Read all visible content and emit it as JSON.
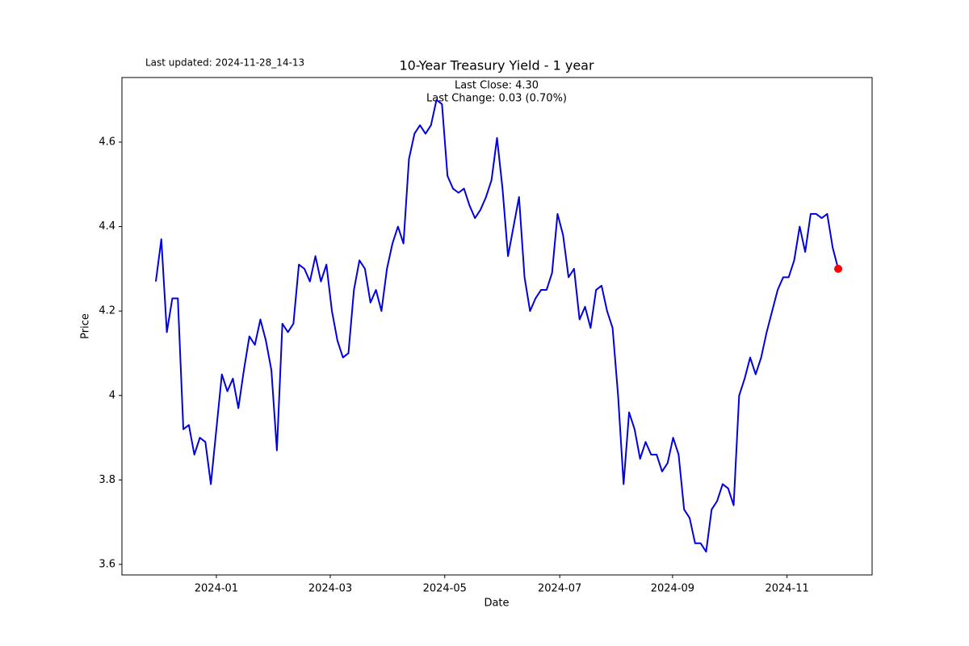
{
  "chart_data": {
    "type": "line",
    "title": "10-Year Treasury Yield - 1 year",
    "annotations": [
      "Last updated: 2024-11-28_14-13",
      "Last Close: 4.30",
      "Last Change: 0.03 (0.70%)"
    ],
    "x_label": "Date",
    "y_label": "Price",
    "series": [
      {
        "color": "#0000e0",
        "marker_color": "red",
        "values": [
          4.27,
          4.37,
          4.15,
          4.23,
          4.23,
          3.92,
          3.93,
          3.86,
          3.9,
          3.89,
          3.79,
          3.92,
          4.05,
          4.01,
          4.04,
          3.97,
          4.06,
          4.14,
          4.12,
          4.18,
          4.13,
          4.06,
          3.87,
          4.17,
          4.15,
          4.17,
          4.31,
          4.3,
          4.27,
          4.33,
          4.27,
          4.31,
          4.2,
          4.13,
          4.09,
          4.1,
          4.25,
          4.32,
          4.3,
          4.22,
          4.25,
          4.2,
          4.3,
          4.36,
          4.4,
          4.36,
          4.56,
          4.62,
          4.64,
          4.62,
          4.64,
          4.7,
          4.69,
          4.52,
          4.49,
          4.48,
          4.49,
          4.45,
          4.42,
          4.44,
          4.47,
          4.51,
          4.61,
          4.49,
          4.33,
          4.4,
          4.47,
          4.28,
          4.2,
          4.23,
          4.25,
          4.25,
          4.29,
          4.43,
          4.38,
          4.28,
          4.3,
          4.18,
          4.21,
          4.16,
          4.25,
          4.26,
          4.2,
          4.16,
          4.0,
          3.79,
          3.96,
          3.92,
          3.85,
          3.89,
          3.86,
          3.86,
          3.82,
          3.84,
          3.9,
          3.86,
          3.73,
          3.71,
          3.65,
          3.65,
          3.63,
          3.73,
          3.75,
          3.79,
          3.78,
          3.74,
          4.0,
          4.04,
          4.09,
          4.05,
          4.09,
          4.15,
          4.2,
          4.25,
          4.28,
          4.28,
          4.32,
          4.4,
          4.34,
          4.43,
          4.43,
          4.42,
          4.43,
          4.35,
          4.3
        ]
      }
    ],
    "xlim": [
      -6.16,
      130.16
    ],
    "xticks": [
      {
        "value": 11.0,
        "label": "2024-01"
      },
      {
        "value": 31.7,
        "label": "2024-03"
      },
      {
        "value": 52.5,
        "label": "2024-05"
      },
      {
        "value": 73.4,
        "label": "2024-07"
      },
      {
        "value": 93.9,
        "label": "2024-09"
      },
      {
        "value": 114.7,
        "label": "2024-11"
      }
    ],
    "ylim": [
      3.575,
      4.753
    ],
    "yticks": [
      3.6,
      3.8,
      4.0,
      4.2,
      4.4,
      4.6
    ],
    "grid": false
  }
}
